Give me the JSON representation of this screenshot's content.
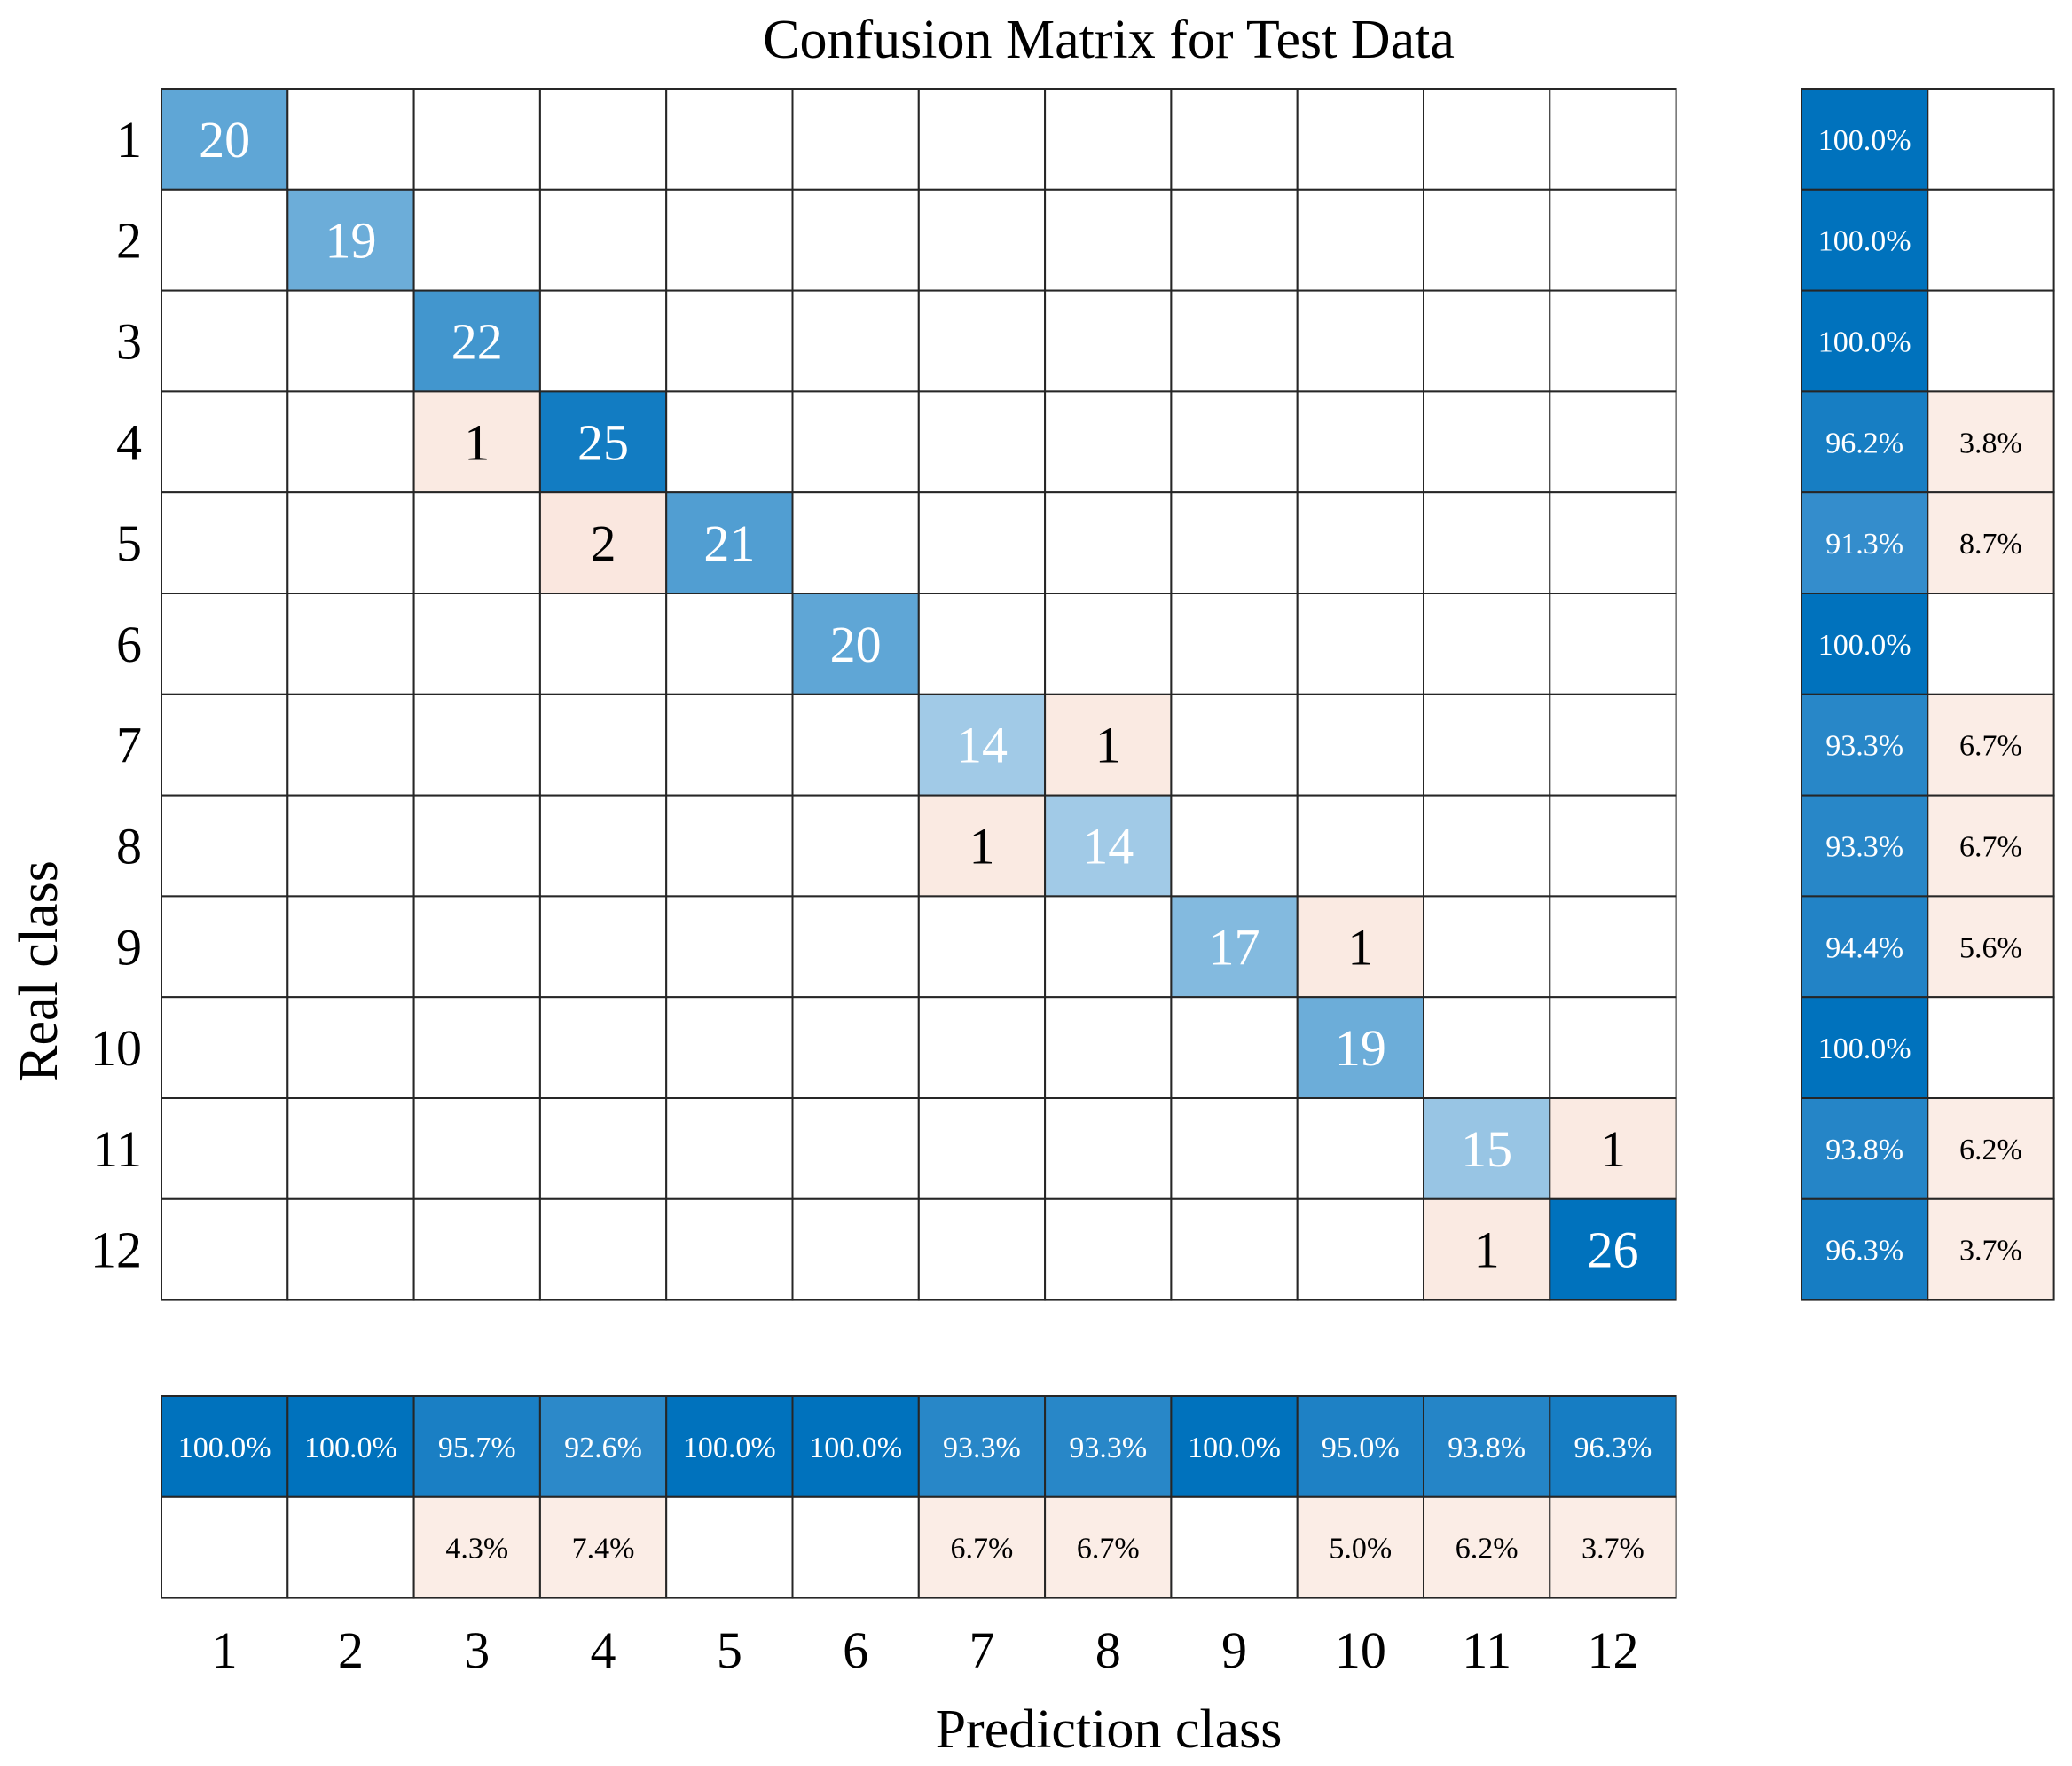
{
  "chart_data": {
    "type": "heatmap",
    "title": "Confusion Matrix for Test Data",
    "xlabel": "Prediction class",
    "ylabel": "Real class",
    "x_tick_labels": [
      "1",
      "2",
      "3",
      "4",
      "5",
      "6",
      "7",
      "8",
      "9",
      "10",
      "11",
      "12"
    ],
    "y_tick_labels": [
      "1",
      "2",
      "3",
      "4",
      "5",
      "6",
      "7",
      "8",
      "9",
      "10",
      "11",
      "12"
    ],
    "matrix": [
      [
        20,
        0,
        0,
        0,
        0,
        0,
        0,
        0,
        0,
        0,
        0,
        0
      ],
      [
        0,
        19,
        0,
        0,
        0,
        0,
        0,
        0,
        0,
        0,
        0,
        0
      ],
      [
        0,
        0,
        22,
        0,
        0,
        0,
        0,
        0,
        0,
        0,
        0,
        0
      ],
      [
        0,
        0,
        1,
        25,
        0,
        0,
        0,
        0,
        0,
        0,
        0,
        0
      ],
      [
        0,
        0,
        0,
        2,
        21,
        0,
        0,
        0,
        0,
        0,
        0,
        0
      ],
      [
        0,
        0,
        0,
        0,
        0,
        20,
        0,
        0,
        0,
        0,
        0,
        0
      ],
      [
        0,
        0,
        0,
        0,
        0,
        0,
        14,
        1,
        0,
        0,
        0,
        0
      ],
      [
        0,
        0,
        0,
        0,
        0,
        0,
        1,
        14,
        0,
        0,
        0,
        0
      ],
      [
        0,
        0,
        0,
        0,
        0,
        0,
        0,
        0,
        17,
        1,
        0,
        0
      ],
      [
        0,
        0,
        0,
        0,
        0,
        0,
        0,
        0,
        0,
        19,
        0,
        0
      ],
      [
        0,
        0,
        0,
        0,
        0,
        0,
        0,
        0,
        0,
        0,
        15,
        1
      ],
      [
        0,
        0,
        0,
        0,
        0,
        0,
        0,
        0,
        0,
        0,
        1,
        26
      ]
    ],
    "row_summary": {
      "correct": [
        "100.0%",
        "100.0%",
        "100.0%",
        "96.2%",
        "91.3%",
        "100.0%",
        "93.3%",
        "93.3%",
        "94.4%",
        "100.0%",
        "93.8%",
        "96.3%"
      ],
      "incorrect": [
        "",
        "",
        "",
        "3.8%",
        "8.7%",
        "",
        "6.7%",
        "6.7%",
        "5.6%",
        "",
        "6.2%",
        "3.7%"
      ]
    },
    "column_summary": {
      "correct": [
        "100.0%",
        "100.0%",
        "95.7%",
        "92.6%",
        "100.0%",
        "100.0%",
        "93.3%",
        "93.3%",
        "100.0%",
        "95.0%",
        "93.8%",
        "96.3%"
      ],
      "incorrect": [
        "",
        "",
        "4.3%",
        "7.4%",
        "",
        "",
        "6.7%",
        "6.7%",
        "",
        "5.0%",
        "6.2%",
        "3.7%"
      ]
    },
    "colors": {
      "correct_dark": "#0072BD",
      "correct_light": "#D8E8F5",
      "incorrect_dark": "#F3C8B6",
      "incorrect_light": "#FBEDE6",
      "grid": "#262626"
    }
  }
}
